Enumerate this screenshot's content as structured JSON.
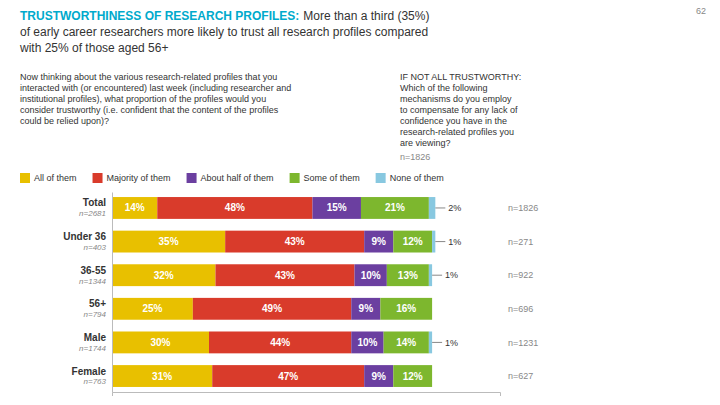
{
  "chart_data": {
    "type": "bar",
    "orientation": "horizontal",
    "stacked": true,
    "data_labels": true,
    "legend": "top",
    "tick_labels": "y",
    "title": "TRUSTWORTHINESS OF RESEARCH PROFILES:",
    "subtitle": [
      "More than a third (35%)",
      "of early career researchers more likely to trust all research profiles compared",
      "with 25% of those aged 56+"
    ],
    "annotations": [
      "62",
      "Now thinking about the various research-related profiles that you\ninteracted with (or encountered) last week (including researcher and\ninstitutional profiles), what proportion of the profiles would you\nconsider trustworthy (i.e. confident that the content of the profiles\ncould be relied upon)?",
      "IF NOT ALL TRUSTWORTHY:\nWhich of the following\nmechanisms do you employ\nto compensate for any lack of\nconfidence you have in the\nresearch-related profiles you\nare viewing?",
      "n=1826"
    ],
    "categories": [
      "Total",
      "Under 36",
      "36-55",
      "56+",
      "Male",
      "Female"
    ],
    "n_labels_left": [
      "n=2681",
      "n=403",
      "n=1344",
      "n=794",
      "n=1744",
      "n=763"
    ],
    "n_labels_right": [
      "n=1826",
      "n=271",
      "n=922",
      "n=696",
      "n=1231",
      "n=627"
    ],
    "xlim": [
      0,
      120
    ],
    "series": [
      {
        "name": "All of them",
        "color": "#E8C000",
        "values": [
          14,
          35,
          32,
          25,
          30,
          31
        ],
        "value_labels": [
          "14%",
          "35%",
          "32%",
          "25%",
          "30%",
          "31%"
        ]
      },
      {
        "name": "Majority of them",
        "color": "#D93B2B",
        "values": [
          48,
          43,
          43,
          49,
          44,
          47
        ],
        "value_labels": [
          "48%",
          "43%",
          "43%",
          "49%",
          "44%",
          "47%"
        ]
      },
      {
        "name": "About half of them",
        "color": "#6B3FA0",
        "values": [
          15,
          9,
          10,
          9,
          10,
          9
        ],
        "value_labels": [
          "15%",
          "9%",
          "10%",
          "9%",
          "10%",
          "9%"
        ]
      },
      {
        "name": "Some of them",
        "color": "#7DB72E",
        "values": [
          21,
          12,
          13,
          16,
          14,
          12
        ],
        "value_labels": [
          "21%",
          "12%",
          "13%",
          "16%",
          "14%",
          "12%"
        ]
      },
      {
        "name": "None of them",
        "color": "#88C8E0",
        "values": [
          2,
          1,
          1,
          0,
          1,
          0
        ],
        "value_labels": [
          "2%",
          "1%",
          "1%",
          null,
          "1%",
          null
        ]
      }
    ]
  }
}
